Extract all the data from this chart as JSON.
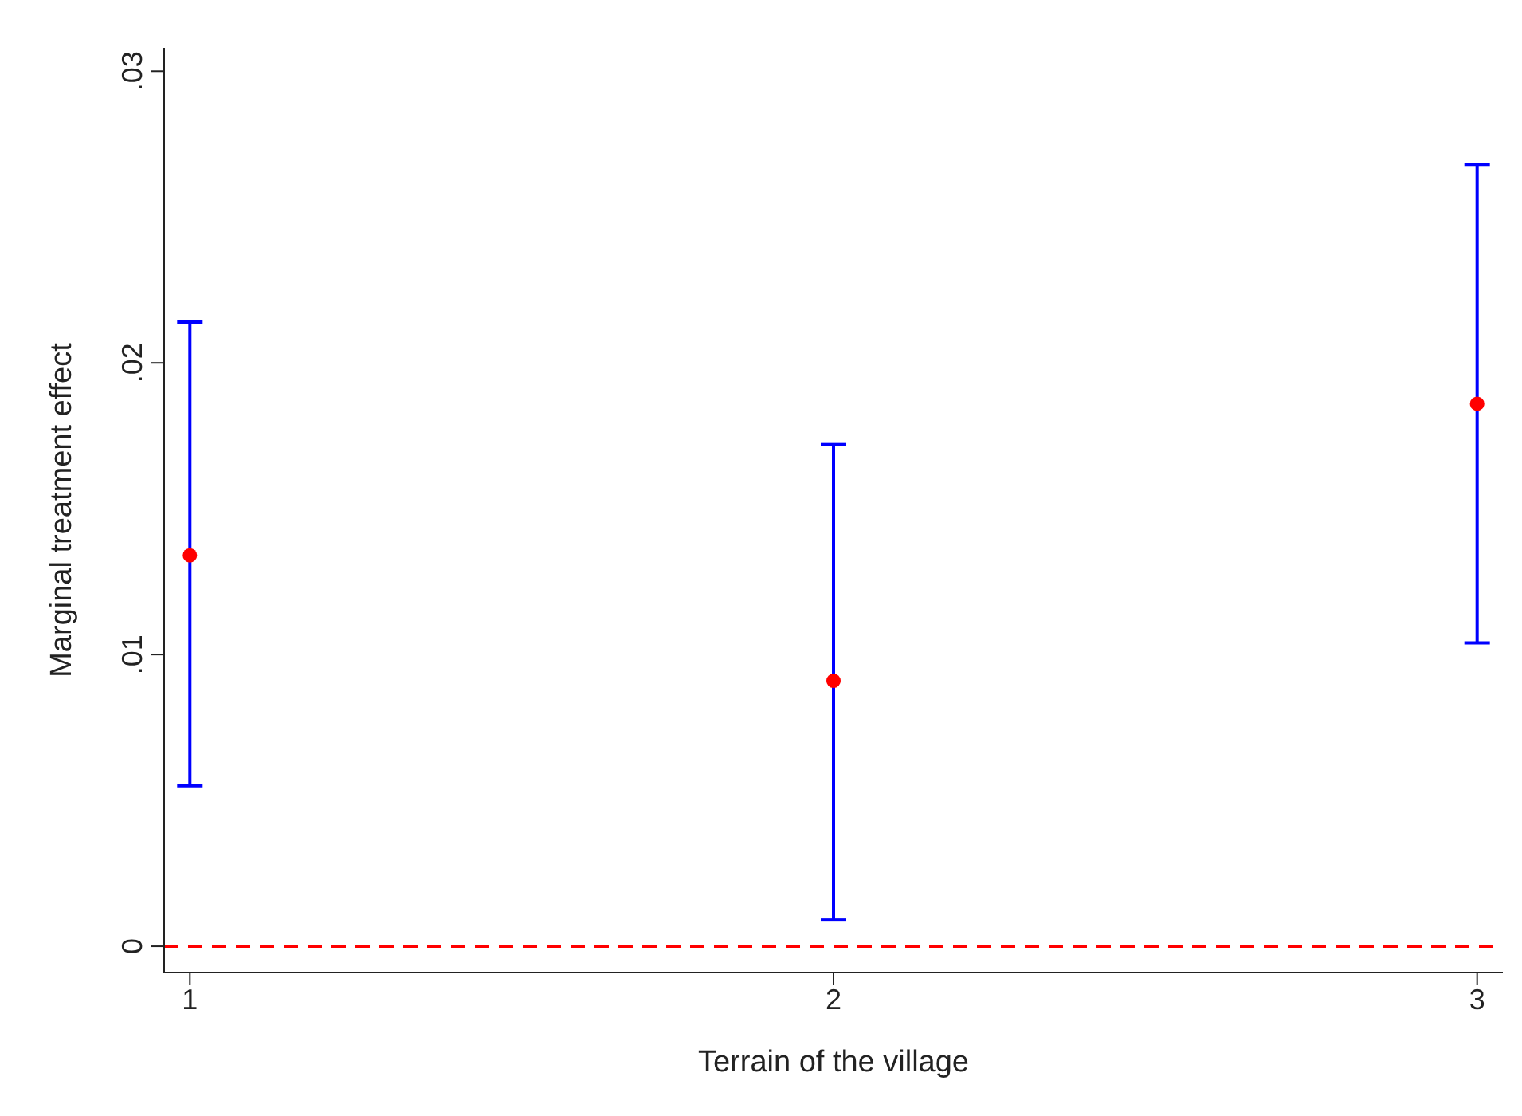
{
  "chart_data": {
    "type": "scatter",
    "xlabel": "Terrain of the village",
    "ylabel": "Marginal treatment effect",
    "x": [
      1,
      2,
      3
    ],
    "series": [
      {
        "color": "#ff0000",
        "values": [
          0.0134,
          0.0091,
          0.0186
        ],
        "errors": [
          [
            0.0055,
            0.0214
          ],
          [
            0.0009,
            0.0172
          ],
          [
            0.0104,
            0.0268
          ]
        ]
      }
    ],
    "xlim": [
      0.96,
      3.04
    ],
    "xticks": [
      1,
      2,
      3
    ],
    "ylim": [
      -0.0009,
      0.0308
    ],
    "yticks": [
      0,
      {
        "value": 0.01,
        "label": ".01"
      },
      {
        "value": 0.02,
        "label": ".02"
      },
      {
        "value": 0.03,
        "label": ".03"
      }
    ],
    "ref_lines": [
      {
        "axis": "y",
        "value": 0,
        "color": "#ff0000",
        "line_style": "dashed"
      }
    ],
    "marker": "circle",
    "grid": false
  }
}
